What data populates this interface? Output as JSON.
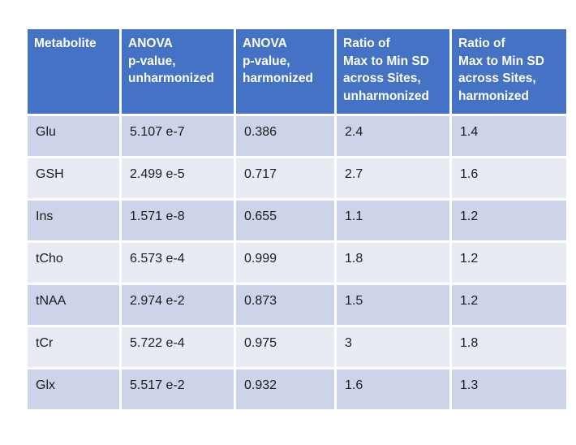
{
  "chart_data": {
    "type": "table",
    "title": "",
    "columns": [
      "Metabolite",
      "ANOVA\np-value,\nunharmonized",
      "ANOVA\np-value,\nharmonized",
      "Ratio of\nMax to Min SD\nacross Sites,\nunharmonized",
      "Ratio of\nMax to Min SD\nacross Sites,\nharmonized"
    ],
    "rows": [
      [
        "Glu",
        "5.107 e-7",
        "0.386",
        "2.4",
        "1.4"
      ],
      [
        "GSH",
        "2.499 e-5",
        "0.717",
        "2.7",
        "1.6"
      ],
      [
        "Ins",
        "1.571 e-8",
        "0.655",
        "1.1",
        "1.2"
      ],
      [
        "tCho",
        "6.573 e-4",
        "0.999",
        "1.8",
        "1.2"
      ],
      [
        "tNAA",
        "2.974 e-2",
        "0.873",
        "1.5",
        "1.2"
      ],
      [
        "tCr",
        "5.722 e-4",
        "0.975",
        "3",
        "1.8"
      ],
      [
        "Glx",
        "5.517 e-2",
        "0.932",
        "1.6",
        "1.3"
      ]
    ],
    "anova_values_unharmonized": [
      5.107e-07,
      2.499e-05,
      1.571e-08,
      0.0006573,
      0.02974,
      0.0005722,
      0.05517
    ],
    "anova_values_harmonized": [
      0.386,
      0.717,
      0.655,
      0.999,
      0.873,
      0.975,
      0.932
    ],
    "sd_ratio_unharmonized": [
      2.4,
      2.7,
      1.1,
      1.8,
      1.5,
      3,
      1.6
    ],
    "sd_ratio_harmonized": [
      1.4,
      1.6,
      1.2,
      1.2,
      1.2,
      1.8,
      1.3
    ],
    "legend_position": "none",
    "grid": "white-separators"
  },
  "colors": {
    "header_bg": "#4472C4",
    "header_text": "#FFFFFF",
    "row_dark": "#CDD3E8",
    "row_light": "#E9EBF4",
    "body_text": "#1C1C1C",
    "background": "#FFFFFF"
  }
}
